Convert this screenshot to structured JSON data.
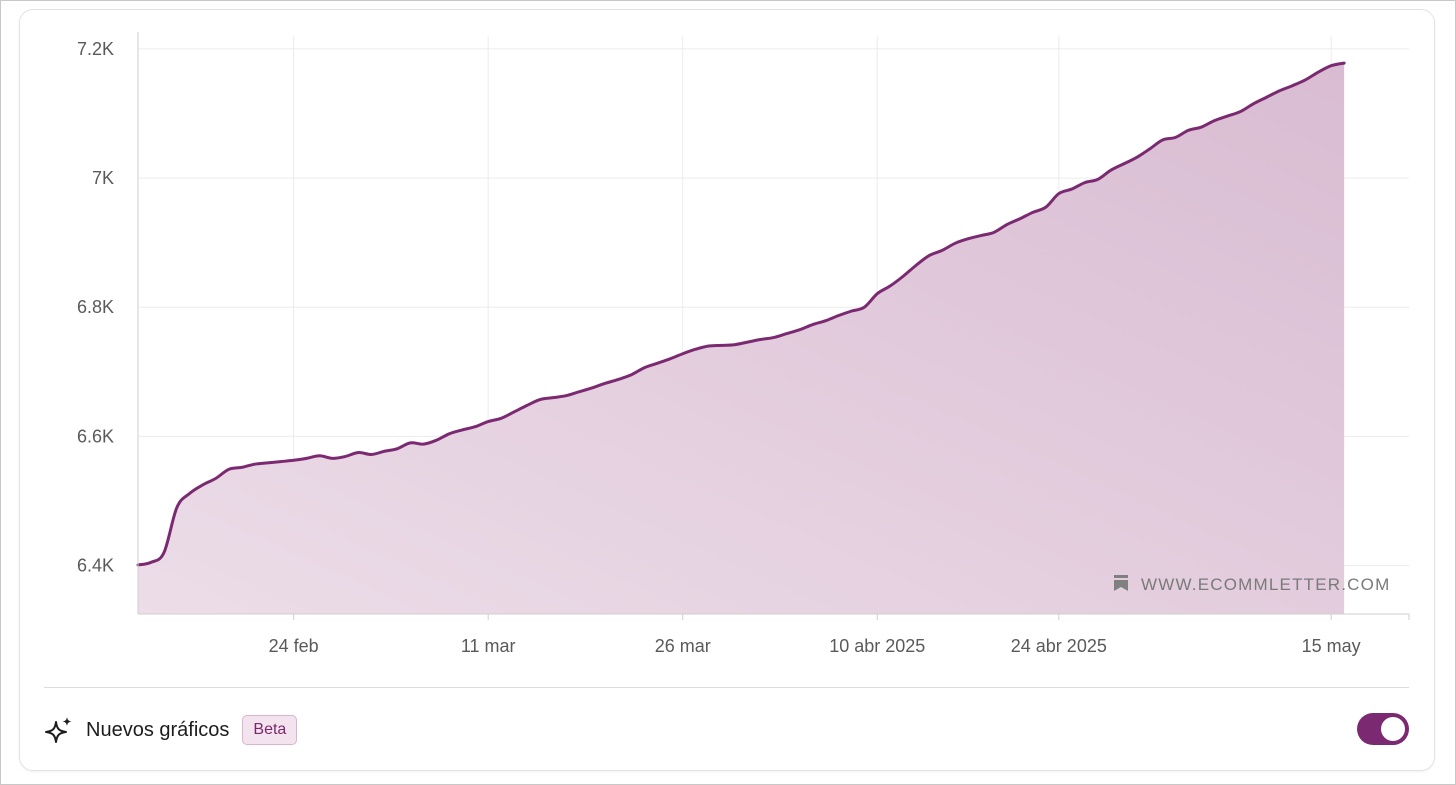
{
  "colors": {
    "line": "#7b2a71",
    "fill_top": "#d9bcd2",
    "fill_bottom": "#ecdde8",
    "grid": "#ececec",
    "toggle_on": "#7b2a71"
  },
  "watermark": {
    "icon": "bookmark-icon",
    "text": "WWW.ECOMMLETTER.COM"
  },
  "footer": {
    "icon": "sparkle-icon",
    "label": "Nuevos gráficos",
    "badge": "Beta",
    "toggle_on": true
  },
  "chart_data": {
    "type": "area",
    "title": "",
    "xlabel": "",
    "ylabel": "",
    "x_range": [
      "2025-02-12",
      "2025-05-21"
    ],
    "ylim": [
      6.325,
      7.22
    ],
    "y_unit": "K",
    "grid": true,
    "y_ticks": [
      {
        "value": 6.4,
        "label": "6.4K"
      },
      {
        "value": 6.6,
        "label": "6.6K"
      },
      {
        "value": 6.8,
        "label": "6.8K"
      },
      {
        "value": 7.0,
        "label": "7K"
      },
      {
        "value": 7.2,
        "label": "7.2K"
      }
    ],
    "x_ticks": [
      {
        "date": "2025-02-24",
        "label": "24 feb"
      },
      {
        "date": "2025-03-11",
        "label": "11 mar"
      },
      {
        "date": "2025-03-26",
        "label": "26 mar"
      },
      {
        "date": "2025-04-10",
        "label": "10 abr 2025"
      },
      {
        "date": "2025-04-24",
        "label": "24 abr 2025"
      },
      {
        "date": "2025-05-15",
        "label": "15 may"
      }
    ],
    "series": [
      {
        "values": [
          [
            "2025-02-12",
            6.401
          ],
          [
            "2025-02-13",
            6.405
          ],
          [
            "2025-02-14",
            6.42
          ],
          [
            "2025-02-15",
            6.49
          ],
          [
            "2025-02-16",
            6.512
          ],
          [
            "2025-02-17",
            6.525
          ],
          [
            "2025-02-18",
            6.535
          ],
          [
            "2025-02-19",
            6.549
          ],
          [
            "2025-02-20",
            6.552
          ],
          [
            "2025-02-21",
            6.557
          ],
          [
            "2025-02-22",
            6.559
          ],
          [
            "2025-02-23",
            6.561
          ],
          [
            "2025-02-24",
            6.563
          ],
          [
            "2025-02-25",
            6.566
          ],
          [
            "2025-02-26",
            6.57
          ],
          [
            "2025-02-27",
            6.566
          ],
          [
            "2025-02-28",
            6.569
          ],
          [
            "2025-03-01",
            6.575
          ],
          [
            "2025-03-02",
            6.572
          ],
          [
            "2025-03-03",
            6.577
          ],
          [
            "2025-03-04",
            6.581
          ],
          [
            "2025-03-05",
            6.59
          ],
          [
            "2025-03-06",
            6.588
          ],
          [
            "2025-03-07",
            6.594
          ],
          [
            "2025-03-08",
            6.604
          ],
          [
            "2025-03-09",
            6.61
          ],
          [
            "2025-03-10",
            6.615
          ],
          [
            "2025-03-11",
            6.623
          ],
          [
            "2025-03-12",
            6.628
          ],
          [
            "2025-03-13",
            6.638
          ],
          [
            "2025-03-14",
            6.648
          ],
          [
            "2025-03-15",
            6.657
          ],
          [
            "2025-03-16",
            6.66
          ],
          [
            "2025-03-17",
            6.663
          ],
          [
            "2025-03-18",
            6.669
          ],
          [
            "2025-03-19",
            6.675
          ],
          [
            "2025-03-20",
            6.682
          ],
          [
            "2025-03-21",
            6.688
          ],
          [
            "2025-03-22",
            6.695
          ],
          [
            "2025-03-23",
            6.706
          ],
          [
            "2025-03-24",
            6.713
          ],
          [
            "2025-03-25",
            6.72
          ],
          [
            "2025-03-26",
            6.728
          ],
          [
            "2025-03-27",
            6.735
          ],
          [
            "2025-03-28",
            6.74
          ],
          [
            "2025-03-29",
            6.741
          ],
          [
            "2025-03-30",
            6.742
          ],
          [
            "2025-03-31",
            6.746
          ],
          [
            "2025-04-01",
            6.75
          ],
          [
            "2025-04-02",
            6.753
          ],
          [
            "2025-04-03",
            6.759
          ],
          [
            "2025-04-04",
            6.765
          ],
          [
            "2025-04-05",
            6.773
          ],
          [
            "2025-04-06",
            6.779
          ],
          [
            "2025-04-07",
            6.787
          ],
          [
            "2025-04-08",
            6.794
          ],
          [
            "2025-04-09",
            6.8
          ],
          [
            "2025-04-10",
            6.821
          ],
          [
            "2025-04-11",
            6.833
          ],
          [
            "2025-04-12",
            6.848
          ],
          [
            "2025-04-13",
            6.865
          ],
          [
            "2025-04-14",
            6.88
          ],
          [
            "2025-04-15",
            6.888
          ],
          [
            "2025-04-16",
            6.899
          ],
          [
            "2025-04-17",
            6.906
          ],
          [
            "2025-04-18",
            6.911
          ],
          [
            "2025-04-19",
            6.916
          ],
          [
            "2025-04-20",
            6.928
          ],
          [
            "2025-04-21",
            6.937
          ],
          [
            "2025-04-22",
            6.947
          ],
          [
            "2025-04-23",
            6.955
          ],
          [
            "2025-04-24",
            6.976
          ],
          [
            "2025-04-25",
            6.983
          ],
          [
            "2025-04-26",
            6.993
          ],
          [
            "2025-04-27",
            6.998
          ],
          [
            "2025-04-28",
            7.012
          ],
          [
            "2025-04-29",
            7.022
          ],
          [
            "2025-04-30",
            7.032
          ],
          [
            "2025-05-01",
            7.045
          ],
          [
            "2025-05-02",
            7.059
          ],
          [
            "2025-05-03",
            7.063
          ],
          [
            "2025-05-04",
            7.074
          ],
          [
            "2025-05-05",
            7.079
          ],
          [
            "2025-05-06",
            7.089
          ],
          [
            "2025-05-07",
            7.096
          ],
          [
            "2025-05-08",
            7.103
          ],
          [
            "2025-05-09",
            7.115
          ],
          [
            "2025-05-10",
            7.125
          ],
          [
            "2025-05-11",
            7.135
          ],
          [
            "2025-05-12",
            7.143
          ],
          [
            "2025-05-13",
            7.152
          ],
          [
            "2025-05-14",
            7.164
          ],
          [
            "2025-05-15",
            7.174
          ],
          [
            "2025-05-16",
            7.178
          ]
        ]
      }
    ]
  }
}
